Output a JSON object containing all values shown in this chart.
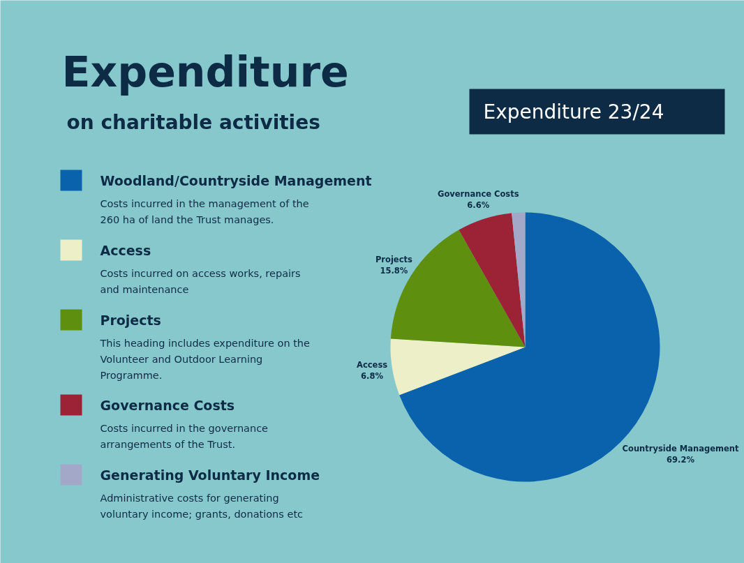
{
  "chart_data": {
    "type": "pie",
    "title": "Expenditure",
    "subtitle": "on charitable activities",
    "categories": [
      "Woodland/Countryside Management",
      "Access",
      "Projects",
      "Governance Costs",
      "Generating Voluntary Income"
    ],
    "values": [
      69.2,
      6.8,
      15.8,
      6.6,
      1.6
    ],
    "colors": [
      "#0a62ac",
      "#ecefc8",
      "#5f8f0e",
      "#9b2335",
      "#a3a8c8"
    ],
    "value_labels": [
      "Countryside Management\n69.2%",
      "Access\n6.8%",
      "Projects\n15.8%",
      "Governance Costs\n6.6%",
      null
    ],
    "legend": "left",
    "annotations": [
      "Expenditure 23/24",
      "Costs incurred in the management of the 260 ha of land the Trust manages.",
      "Costs incurred on access works, repairs and maintenance",
      "This heading includes expenditure on the Volunteer and Outdoor Learning Programme.",
      "Costs incurred in the governance arrangements of the Trust.",
      "Administrative costs for generating voluntary income; grants, donations etc"
    ]
  }
}
